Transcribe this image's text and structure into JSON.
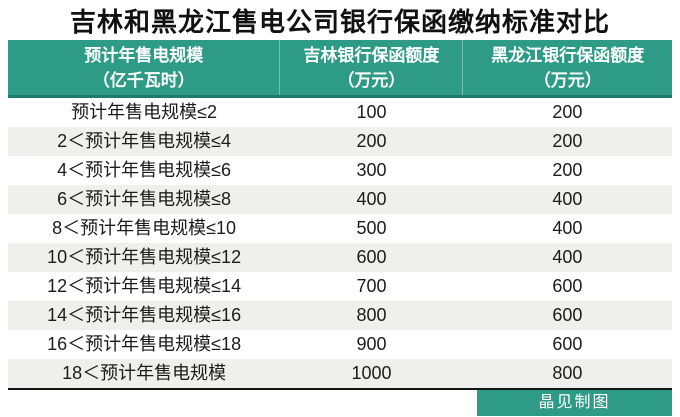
{
  "title": "吉林和黑龙江售电公司银行保函缴纳标准对比",
  "colors": {
    "accent_green": "#2e9b87",
    "header_bottom_border": "#1f7c6c",
    "row_alt_gray": "#efefee",
    "title_text": "#111111",
    "body_text": "#1c1c1c",
    "divider_black": "#151515"
  },
  "table": {
    "columns": [
      {
        "line1": "预计年售电规模",
        "line2": "（亿千瓦时）"
      },
      {
        "line1": "吉林银行保函额度",
        "line2": "（万元）"
      },
      {
        "line1": "黑龙江银行保函额度",
        "line2": "（万元）"
      }
    ],
    "rows": [
      {
        "scale": "预计年售电规模≤2",
        "jilin": "100",
        "heilongjiang": "200"
      },
      {
        "scale": "2＜预计年售电规模≤4",
        "jilin": "200",
        "heilongjiang": "200"
      },
      {
        "scale": "4＜预计年售电规模≤6",
        "jilin": "300",
        "heilongjiang": "200"
      },
      {
        "scale": "6＜预计年售电规模≤8",
        "jilin": "400",
        "heilongjiang": "400"
      },
      {
        "scale": "8＜预计年售电规模≤10",
        "jilin": "500",
        "heilongjiang": "400"
      },
      {
        "scale": "10＜预计年售电规模≤12",
        "jilin": "600",
        "heilongjiang": "400"
      },
      {
        "scale": "12＜预计年售电规模≤14",
        "jilin": "700",
        "heilongjiang": "600"
      },
      {
        "scale": "14＜预计年售电规模≤16",
        "jilin": "800",
        "heilongjiang": "600"
      },
      {
        "scale": "16＜预计年售电规模≤18",
        "jilin": "900",
        "heilongjiang": "600"
      },
      {
        "scale": "18＜预计年售电规模",
        "jilin": "1000",
        "heilongjiang": "800"
      }
    ]
  },
  "footer": {
    "credit": "晶见制图"
  },
  "chart_data": {
    "type": "table",
    "title": "吉林和黑龙江售电公司银行保函缴纳标准对比",
    "columns": [
      "预计年售电规模（亿千瓦时）",
      "吉林银行保函额度（万元）",
      "黑龙江银行保函额度（万元）"
    ],
    "categories": [
      "预计年售电规模≤2",
      "2＜预计年售电规模≤4",
      "4＜预计年售电规模≤6",
      "6＜预计年售电规模≤8",
      "8＜预计年售电规模≤10",
      "10＜预计年售电规模≤12",
      "12＜预计年售电规模≤14",
      "14＜预计年售电规模≤16",
      "16＜预计年售电规模≤18",
      "18＜预计年售电规模"
    ],
    "series": [
      {
        "name": "吉林银行保函额度（万元）",
        "values": [
          100,
          200,
          300,
          400,
          500,
          600,
          700,
          800,
          900,
          1000
        ]
      },
      {
        "name": "黑龙江银行保函额度（万元）",
        "values": [
          200,
          200,
          200,
          400,
          400,
          400,
          600,
          600,
          600,
          800
        ]
      }
    ]
  }
}
